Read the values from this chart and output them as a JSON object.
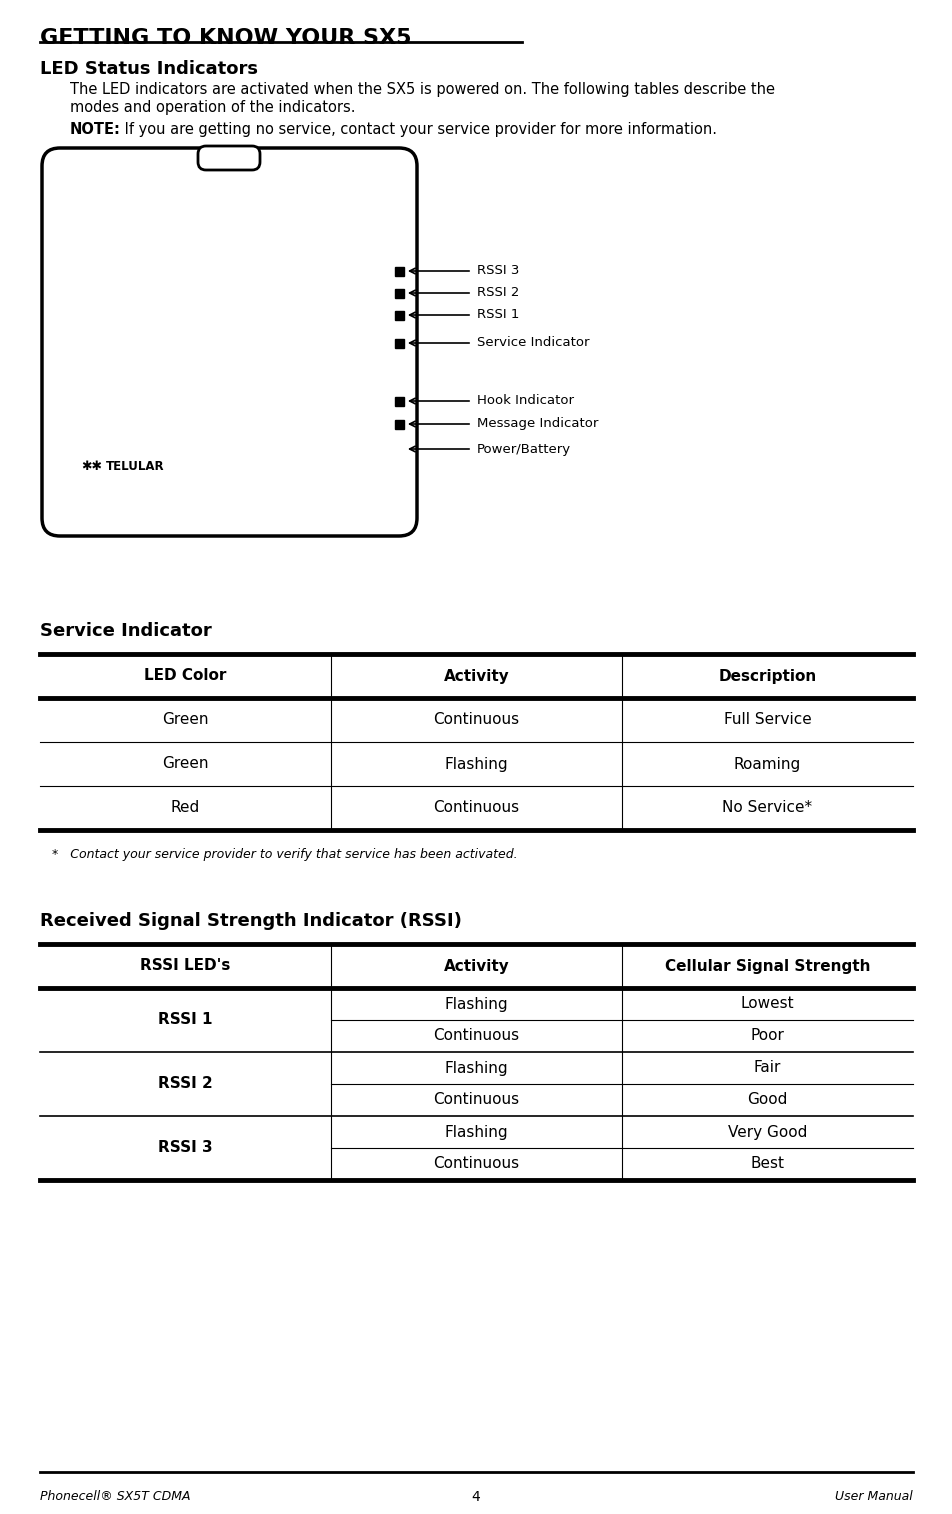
{
  "title": "GETTING TO KNOW YOUR SX5",
  "section1_title": "LED Status Indicators",
  "section1_body_line1": "The LED indicators are activated when the SX5 is powered on. The following tables describe the",
  "section1_body_line2": "modes and operation of the indicators.",
  "note_label": "NOTE:",
  "note_body": " If you are getting no service, contact your service provider for more information.",
  "service_section_title": "Service Indicator",
  "service_table_headers": [
    "LED Color",
    "Activity",
    "Description"
  ],
  "service_table_rows": [
    [
      "Green",
      "Continuous",
      "Full Service"
    ],
    [
      "Green",
      "Flashing",
      "Roaming"
    ],
    [
      "Red",
      "Continuous",
      "No Service*"
    ]
  ],
  "footnote": "*   Contact your service provider to verify that service has been activated.",
  "rssi_section_title": "Received Signal Strength Indicator (RSSI)",
  "rssi_table_headers": [
    "RSSI LED's",
    "Activity",
    "Cellular Signal Strength"
  ],
  "rssi_groups": [
    {
      "label": "RSSI 1",
      "rows": [
        [
          "Flashing",
          "Lowest"
        ],
        [
          "Continuous",
          "Poor"
        ]
      ]
    },
    {
      "label": "RSSI 2",
      "rows": [
        [
          "Flashing",
          "Fair"
        ],
        [
          "Continuous",
          "Good"
        ]
      ]
    },
    {
      "label": "RSSI 3",
      "rows": [
        [
          "Flashing",
          "Very Good"
        ],
        [
          "Continuous",
          "Best"
        ]
      ]
    }
  ],
  "footer_left": "Phonecell® SX5T CDMA",
  "footer_center": "4",
  "footer_right": "User Manual",
  "bg_color": "#ffffff",
  "text_color": "#000000"
}
